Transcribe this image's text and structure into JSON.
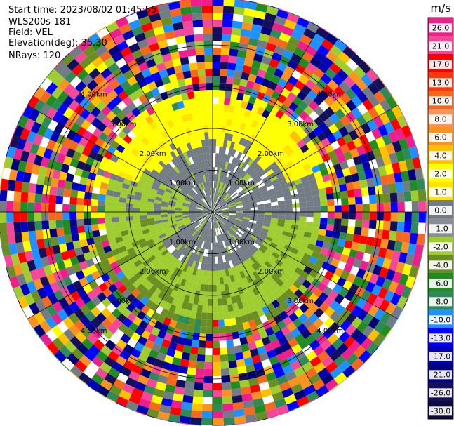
{
  "header": {
    "start_time": "Start time: 2023/08/02 01:45:55",
    "instrument": "WLS200s-181",
    "field": "Field: VEL",
    "elevation": "Elevation(deg): 35.30",
    "nrays": "NRays: 120"
  },
  "plot": {
    "range_rings_km": [
      "1.00km",
      "2.00km",
      "3.00km",
      "4.00km"
    ],
    "rays": 120
  },
  "colorbar": {
    "unit": "m/s",
    "ticks": [
      "26.0",
      "21.0",
      "17.0",
      "13.0",
      "10.0",
      "8.0",
      "6.0",
      "4.0",
      "2.0",
      "1.0",
      "0.0",
      "-1.0",
      "-2.0",
      "-4.0",
      "-6.0",
      "-8.0",
      "-10.0",
      "-13.0",
      "-17.0",
      "-21.0",
      "-26.0",
      "-30.0"
    ],
    "colors": [
      "#ee1f8c",
      "#f3489a",
      "#ff0000",
      "#f63a0c",
      "#f5681d",
      "#f7955e",
      "#f7931e",
      "#ffc000",
      "#ffff00",
      "#ffe400",
      "#737b85",
      "#8a8f96",
      "#9fcc2f",
      "#6b8e23",
      "#228b22",
      "#2e8b57",
      "#1e90ff",
      "#0000ff",
      "#0000b4",
      "#00007a",
      "#140f5a",
      "#0a0a3c"
    ]
  }
}
